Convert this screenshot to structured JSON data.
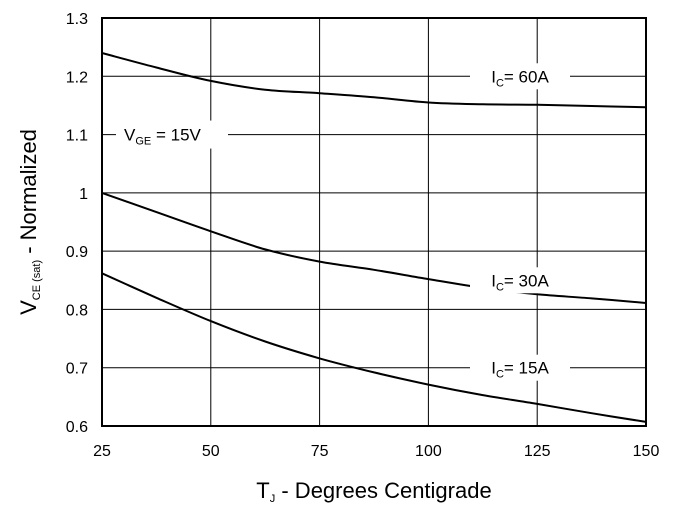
{
  "chart_data": {
    "type": "line",
    "xlabel": {
      "main": "T",
      "sub": "J",
      "rest": " - Degrees Centigrade"
    },
    "ylabel": {
      "main": "V",
      "sub": "CE (sat)",
      "rest": " - Normalized"
    },
    "xlim": [
      25,
      150
    ],
    "ylim": [
      0.6,
      1.3
    ],
    "xticks": [
      25,
      50,
      75,
      100,
      125,
      150
    ],
    "xtick_labels": [
      "25",
      "50",
      "75",
      "100",
      "125",
      "150"
    ],
    "yticks": [
      0.6,
      0.7,
      0.8,
      0.9,
      1.0,
      1.1,
      1.2,
      1.3
    ],
    "ytick_labels": [
      "0.6",
      "0.7",
      "0.8",
      "0.9",
      "1",
      "1.1",
      "1.2",
      "1.3"
    ],
    "grid": true,
    "annotation": {
      "main": "V",
      "sub": "GE",
      "rest": " = 15V"
    },
    "series": [
      {
        "name": "I C=60A",
        "label": {
          "main": "I",
          "sub": "C",
          "rest": "= 60A"
        },
        "x": [
          25,
          37.5,
          50,
          62.5,
          75,
          87.5,
          100,
          112.5,
          125,
          137.5,
          150
        ],
        "y": [
          1.24,
          1.215,
          1.192,
          1.177,
          1.171,
          1.164,
          1.155,
          1.152,
          1.151,
          1.149,
          1.147
        ]
      },
      {
        "name": "I C=30A",
        "label": {
          "main": "I",
          "sub": "C",
          "rest": "= 30A"
        },
        "x": [
          25,
          37.5,
          50,
          62.5,
          75,
          87.5,
          100,
          112.5,
          125,
          137.5,
          150
        ],
        "y": [
          1.0,
          0.967,
          0.934,
          0.903,
          0.882,
          0.868,
          0.852,
          0.837,
          0.826,
          0.819,
          0.811
        ]
      },
      {
        "name": "I C=15A",
        "label": {
          "main": "I",
          "sub": "C",
          "rest": "= 15A"
        },
        "x": [
          25,
          37.5,
          50,
          62.5,
          75,
          87.5,
          100,
          112.5,
          125,
          137.5,
          150
        ],
        "y": [
          0.862,
          0.82,
          0.78,
          0.745,
          0.716,
          0.692,
          0.671,
          0.653,
          0.638,
          0.622,
          0.607
        ]
      }
    ]
  }
}
